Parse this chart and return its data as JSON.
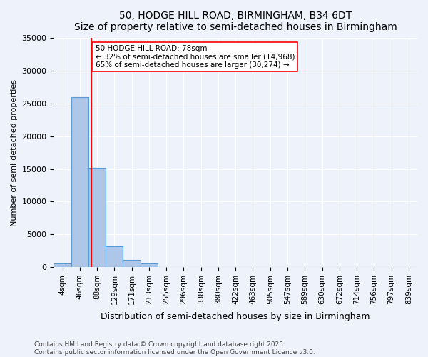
{
  "title": "50, HODGE HILL ROAD, BIRMINGHAM, B34 6DT",
  "subtitle": "Size of property relative to semi-detached houses in Birmingham",
  "xlabel": "Distribution of semi-detached houses by size in Birmingham",
  "ylabel": "Number of semi-detached properties",
  "bin_labels": [
    "4sqm",
    "46sqm",
    "88sqm",
    "129sqm",
    "171sqm",
    "213sqm",
    "255sqm",
    "296sqm",
    "338sqm",
    "380sqm",
    "422sqm",
    "463sqm",
    "505sqm",
    "547sqm",
    "589sqm",
    "630sqm",
    "672sqm",
    "714sqm",
    "756sqm",
    "797sqm",
    "839sqm"
  ],
  "bar_values": [
    500,
    26000,
    15200,
    3200,
    1100,
    550,
    0,
    0,
    0,
    0,
    0,
    0,
    0,
    0,
    0,
    0,
    0,
    0,
    0,
    0,
    0
  ],
  "ylim": [
    0,
    35000
  ],
  "bar_color": "#aec6e8",
  "bar_edge_color": "#5b9bd5",
  "vline_x": 1.65,
  "vline_color": "red",
  "annotation_text": "50 HODGE HILL ROAD: 78sqm\n← 32% of semi-detached houses are smaller (14,968)\n65% of semi-detached houses are larger (30,274) →",
  "annotation_box_color": "white",
  "annotation_box_edge": "red",
  "footer": "Contains HM Land Registry data © Crown copyright and database right 2025.\nContains public sector information licensed under the Open Government Licence v3.0.",
  "bg_color": "#eef2fb",
  "plot_bg_color": "#eef2fb",
  "grid_color": "white"
}
